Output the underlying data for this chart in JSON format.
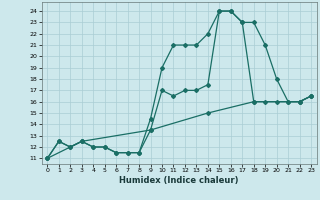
{
  "title": "",
  "xlabel": "Humidex (Indice chaleur)",
  "background_color": "#cde8ec",
  "grid_color": "#aacdd4",
  "line_color": "#1a6e65",
  "xlim": [
    -0.5,
    23.5
  ],
  "ylim": [
    10.5,
    24.8
  ],
  "yticks": [
    11,
    12,
    13,
    14,
    15,
    16,
    17,
    18,
    19,
    20,
    21,
    22,
    23,
    24
  ],
  "xticks": [
    0,
    1,
    2,
    3,
    4,
    5,
    6,
    7,
    8,
    9,
    10,
    11,
    12,
    13,
    14,
    15,
    16,
    17,
    18,
    19,
    20,
    21,
    22,
    23
  ],
  "series1": [
    [
      0,
      11
    ],
    [
      1,
      12.5
    ],
    [
      2,
      12
    ],
    [
      3,
      12.5
    ],
    [
      4,
      12
    ],
    [
      5,
      12
    ],
    [
      6,
      11.5
    ],
    [
      7,
      11.5
    ],
    [
      8,
      11.5
    ],
    [
      9,
      14.5
    ],
    [
      10,
      19
    ],
    [
      11,
      21
    ],
    [
      12,
      21
    ],
    [
      13,
      21
    ],
    [
      14,
      22
    ],
    [
      15,
      24
    ],
    [
      16,
      24
    ],
    [
      17,
      23
    ],
    [
      18,
      23
    ],
    [
      19,
      21
    ],
    [
      20,
      18
    ],
    [
      21,
      16
    ],
    [
      22,
      16
    ],
    [
      23,
      16.5
    ]
  ],
  "series2": [
    [
      0,
      11
    ],
    [
      1,
      12.5
    ],
    [
      2,
      12
    ],
    [
      3,
      12.5
    ],
    [
      4,
      12
    ],
    [
      5,
      12
    ],
    [
      6,
      11.5
    ],
    [
      7,
      11.5
    ],
    [
      8,
      11.5
    ],
    [
      9,
      13.5
    ],
    [
      10,
      17
    ],
    [
      11,
      16.5
    ],
    [
      12,
      17
    ],
    [
      13,
      17
    ],
    [
      14,
      17.5
    ],
    [
      15,
      24
    ],
    [
      16,
      24
    ],
    [
      17,
      23
    ],
    [
      18,
      16
    ],
    [
      19,
      16
    ],
    [
      20,
      16
    ],
    [
      21,
      16
    ],
    [
      22,
      16
    ],
    [
      23,
      16.5
    ]
  ],
  "series3": [
    [
      0,
      11
    ],
    [
      3,
      12.5
    ],
    [
      9,
      13.5
    ],
    [
      14,
      15
    ],
    [
      18,
      16
    ],
    [
      22,
      16
    ],
    [
      23,
      16.5
    ]
  ]
}
